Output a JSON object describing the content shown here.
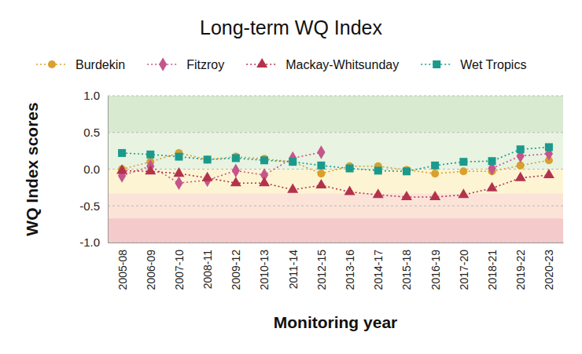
{
  "chart_data": {
    "type": "line",
    "title": "Long-term WQ Index",
    "x_label": "Monitoring year",
    "y_label": "WQ Index scores",
    "categories": [
      "2005-08",
      "2006-09",
      "2007-10",
      "2008-11",
      "2009-12",
      "2010-13",
      "2011-14",
      "2012-15",
      "2013-16",
      "2014-17",
      "2015-18",
      "2016-19",
      "2017-20",
      "2018-21",
      "2019-22",
      "2020-23"
    ],
    "series": [
      {
        "name": "Burdekin",
        "color": "#d9a02c",
        "marker": "circle",
        "line_style": "dotted",
        "values": [
          0.0,
          0.1,
          0.22,
          0.13,
          0.17,
          0.14,
          0.1,
          -0.06,
          0.04,
          0.04,
          -0.01,
          -0.06,
          -0.03,
          -0.03,
          0.05,
          0.12
        ]
      },
      {
        "name": "Fitzroy",
        "color": "#c4568c",
        "marker": "diamond",
        "line_style": "dotted",
        "values": [
          -0.09,
          0.04,
          -0.19,
          -0.15,
          -0.02,
          -0.08,
          0.15,
          0.23,
          null,
          null,
          null,
          null,
          null,
          0.01,
          0.18,
          0.21
        ]
      },
      {
        "name": "Mackay-Whitsunday",
        "color": "#b3324c",
        "marker": "triangle",
        "line_style": "dotted",
        "values": [
          -0.02,
          -0.03,
          -0.06,
          -0.12,
          -0.19,
          -0.19,
          -0.28,
          -0.22,
          -0.31,
          -0.35,
          -0.38,
          -0.38,
          -0.35,
          -0.26,
          -0.12,
          -0.08
        ]
      },
      {
        "name": "Wet Tropics",
        "color": "#1a9a8c",
        "marker": "square",
        "line_style": "dotted",
        "values": [
          0.22,
          0.2,
          0.17,
          0.13,
          0.15,
          0.12,
          0.1,
          0.05,
          0.01,
          -0.02,
          -0.03,
          0.05,
          0.1,
          0.11,
          0.27,
          0.3
        ]
      }
    ],
    "bands": [
      {
        "from": 0.5,
        "to": 1.0,
        "color": "#d8ead0"
      },
      {
        "from": 0.0,
        "to": 0.5,
        "color": "#e8f3e1"
      },
      {
        "from": -0.33,
        "to": 0.0,
        "color": "#fdf4d3"
      },
      {
        "from": -0.67,
        "to": -0.33,
        "color": "#fbe3d8"
      },
      {
        "from": -1.0,
        "to": -0.67,
        "color": "#f5caca"
      }
    ],
    "ylim": [
      -1.0,
      1.0
    ],
    "yticks": [
      {
        "value": -1.0,
        "label": "-1.0"
      },
      {
        "value": -0.5,
        "label": "-0.5"
      },
      {
        "value": 0.0,
        "label": "0.0"
      },
      {
        "value": 0.5,
        "label": "0.5"
      },
      {
        "value": 1.0,
        "label": "1.0"
      }
    ],
    "grid": true,
    "legend": "top"
  }
}
